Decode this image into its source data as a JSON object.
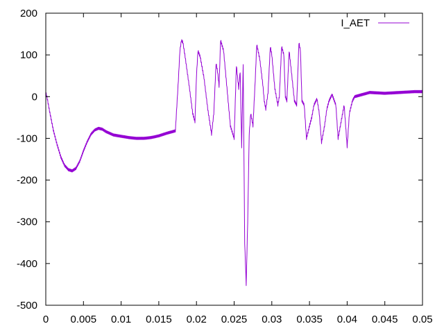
{
  "chart_data": {
    "type": "line",
    "title": "",
    "xlabel": "",
    "ylabel": "",
    "xlim": [
      0,
      0.05
    ],
    "ylim": [
      -500,
      200
    ],
    "xticks": [
      {
        "value": 0,
        "label": "0"
      },
      {
        "value": 0.005,
        "label": "0.005"
      },
      {
        "value": 0.01,
        "label": "0.01"
      },
      {
        "value": 0.015,
        "label": "0.015"
      },
      {
        "value": 0.02,
        "label": "0.02"
      },
      {
        "value": 0.025,
        "label": "0.025"
      },
      {
        "value": 0.03,
        "label": "0.03"
      },
      {
        "value": 0.035,
        "label": "0.035"
      },
      {
        "value": 0.04,
        "label": "0.04"
      },
      {
        "value": 0.045,
        "label": "0.045"
      },
      {
        "value": 0.05,
        "label": "0.05"
      }
    ],
    "yticks": [
      {
        "value": -500,
        "label": "-500"
      },
      {
        "value": -400,
        "label": "-400"
      },
      {
        "value": -300,
        "label": "-300"
      },
      {
        "value": -200,
        "label": "-200"
      },
      {
        "value": -100,
        "label": "-100"
      },
      {
        "value": 0,
        "label": "0"
      },
      {
        "value": 100,
        "label": "100"
      },
      {
        "value": 200,
        "label": "200"
      }
    ],
    "grid": false,
    "legend_position": "top-right",
    "series": [
      {
        "name": "I_AET",
        "color": "#9400d3",
        "x": [
          0,
          0.0002,
          0.0005,
          0.001,
          0.0015,
          0.002,
          0.0025,
          0.003,
          0.0035,
          0.004,
          0.0045,
          0.005,
          0.0055,
          0.006,
          0.0065,
          0.007,
          0.0075,
          0.008,
          0.009,
          0.01,
          0.011,
          0.012,
          0.013,
          0.014,
          0.015,
          0.016,
          0.0172,
          0.0176,
          0.0178,
          0.018,
          0.0182,
          0.0185,
          0.019,
          0.0195,
          0.0198,
          0.02,
          0.0202,
          0.0205,
          0.021,
          0.0215,
          0.022,
          0.0223,
          0.0226,
          0.0228,
          0.023,
          0.0232,
          0.0236,
          0.024,
          0.0245,
          0.025,
          0.0253,
          0.0256,
          0.0258,
          0.026,
          0.0262,
          0.0264,
          0.0266,
          0.0268,
          0.027,
          0.0272,
          0.0275,
          0.0278,
          0.028,
          0.0284,
          0.0288,
          0.029,
          0.0292,
          0.0295,
          0.0298,
          0.03,
          0.0304,
          0.0308,
          0.031,
          0.0313,
          0.0316,
          0.0318,
          0.032,
          0.0323,
          0.0326,
          0.033,
          0.0333,
          0.0336,
          0.0338,
          0.034,
          0.0343,
          0.0346,
          0.035,
          0.0353,
          0.0356,
          0.036,
          0.0363,
          0.0366,
          0.037,
          0.0373,
          0.0376,
          0.038,
          0.0385,
          0.0388,
          0.039,
          0.0393,
          0.0396,
          0.04,
          0.0403,
          0.0407,
          0.041,
          0.042,
          0.043,
          0.045,
          0.047,
          0.049,
          0.05
        ],
        "y": [
          10,
          -5,
          -35,
          -80,
          -115,
          -145,
          -165,
          -175,
          -178,
          -172,
          -155,
          -130,
          -108,
          -90,
          -80,
          -76,
          -78,
          -84,
          -92,
          -95,
          -98,
          -100,
          -100,
          -98,
          -94,
          -88,
          -82,
          40,
          110,
          135,
          130,
          95,
          30,
          -40,
          -60,
          50,
          110,
          95,
          45,
          -30,
          -90,
          -40,
          80,
          60,
          25,
          135,
          110,
          30,
          -70,
          -100,
          75,
          20,
          60,
          -120,
          80,
          -350,
          -450,
          -300,
          -90,
          -40,
          -70,
          40,
          125,
          90,
          30,
          -10,
          -30,
          10,
          120,
          100,
          20,
          -20,
          0,
          120,
          100,
          0,
          -10,
          110,
          60,
          -10,
          -20,
          130,
          110,
          -10,
          -20,
          -100,
          -70,
          -50,
          -20,
          -5,
          -40,
          -110,
          -70,
          -30,
          -10,
          5,
          -20,
          -100,
          -80,
          -50,
          -20,
          -120,
          -40,
          -10,
          0,
          5,
          10,
          8,
          10,
          12,
          12
        ]
      }
    ]
  }
}
